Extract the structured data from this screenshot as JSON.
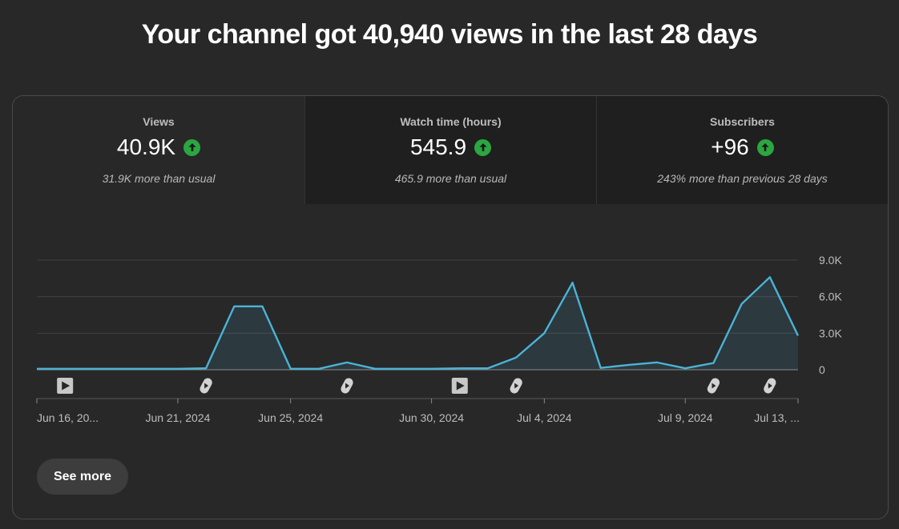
{
  "headline": "Your channel got 40,940 views in the last 28 days",
  "tabs": [
    {
      "label": "Views",
      "value": "40.9K",
      "sub": "31.9K more than usual",
      "trend_icon": "arrow-up-circle-icon",
      "active": true
    },
    {
      "label": "Watch time (hours)",
      "value": "545.9",
      "sub": "465.9 more than usual",
      "trend_icon": "arrow-up-circle-icon",
      "active": false
    },
    {
      "label": "Subscribers",
      "value": "+96",
      "sub": "243% more than previous 28 days",
      "trend_icon": "arrow-up-circle-icon",
      "active": false
    }
  ],
  "see_more_label": "See more",
  "colors": {
    "line": "#4bb3d6",
    "up_badge": "#2ba640",
    "background": "#282828"
  },
  "chart_data": {
    "type": "area",
    "title": "",
    "xlabel": "",
    "ylabel": "",
    "ylim": [
      0,
      9000
    ],
    "y_ticks": [
      0,
      3000,
      6000,
      9000
    ],
    "y_tick_labels": [
      "0",
      "3.0K",
      "6.0K",
      "9.0K"
    ],
    "y_axis_side": "right",
    "grid": true,
    "x_tick_labels": [
      "Jun 16, 20...",
      "Jun 21, 2024",
      "Jun 25, 2024",
      "Jun 30, 2024",
      "Jul 4, 2024",
      "Jul 9, 2024",
      "Jul 13, ..."
    ],
    "x_tick_days": [
      0,
      5,
      9,
      14,
      18,
      23,
      27
    ],
    "series": [
      {
        "days": [
          0,
          1,
          2,
          3,
          4,
          5,
          6,
          7,
          8,
          9,
          10,
          11,
          12,
          13,
          14,
          15,
          16,
          17,
          18,
          19,
          20,
          21,
          22,
          23,
          24,
          25,
          26,
          27
        ],
        "values": [
          80,
          80,
          80,
          80,
          80,
          80,
          120,
          5200,
          5200,
          80,
          80,
          600,
          80,
          80,
          80,
          120,
          120,
          1000,
          3000,
          7150,
          150,
          400,
          600,
          120,
          550,
          5400,
          7600,
          2800
        ]
      }
    ],
    "video_markers": [
      {
        "day": 1,
        "icon": "video-play-icon"
      },
      {
        "day": 6,
        "icon": "shorts-icon"
      },
      {
        "day": 11,
        "icon": "shorts-icon"
      },
      {
        "day": 15,
        "icon": "video-play-icon"
      },
      {
        "day": 17,
        "icon": "shorts-icon"
      },
      {
        "day": 24,
        "icon": "shorts-icon"
      },
      {
        "day": 26,
        "icon": "shorts-icon"
      }
    ]
  }
}
